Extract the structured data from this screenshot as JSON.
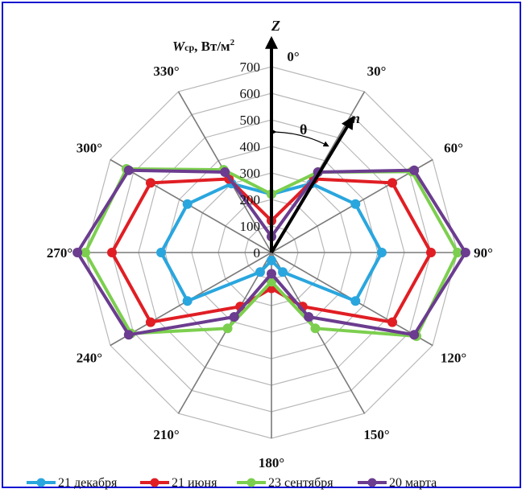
{
  "chart_data": {
    "type": "radar",
    "axis_label": "Wср, Вт/м²",
    "axis_label_main": "W",
    "axis_label_sub": "ср",
    "axis_label_unit": ", Вт/м",
    "axis_label_sup": "2",
    "zenith_label": "Z",
    "normal_label": "n",
    "angle_label": "θ",
    "radial_ticks": [
      0,
      100,
      200,
      300,
      400,
      500,
      600,
      700
    ],
    "radial_max": 700,
    "angles_deg": [
      0,
      30,
      60,
      90,
      120,
      150,
      180,
      210,
      240,
      270,
      300,
      330
    ],
    "angle_labels": [
      "0°",
      "30°",
      "60°",
      "90°",
      "120°",
      "150°",
      "180°",
      "210°",
      "240°",
      "270°",
      "300°",
      "330°"
    ],
    "series": [
      {
        "name": "21 декабря",
        "color": "#2aa6de",
        "values": [
          220,
          300,
          365,
          415,
          365,
          85,
          30,
          85,
          365,
          415,
          365,
          300
        ]
      },
      {
        "name": "21 июня",
        "color": "#e01e24",
        "values": [
          120,
          320,
          525,
          600,
          525,
          235,
          135,
          235,
          525,
          600,
          525,
          320
        ]
      },
      {
        "name": "23 сентября",
        "color": "#7ccf4e",
        "values": [
          220,
          350,
          610,
          700,
          630,
          330,
          110,
          330,
          610,
          700,
          630,
          360
        ]
      },
      {
        "name": "20 марта",
        "color": "#6b3c8f",
        "values": [
          60,
          350,
          620,
          730,
          620,
          280,
          80,
          280,
          620,
          730,
          620,
          350
        ]
      }
    ]
  }
}
